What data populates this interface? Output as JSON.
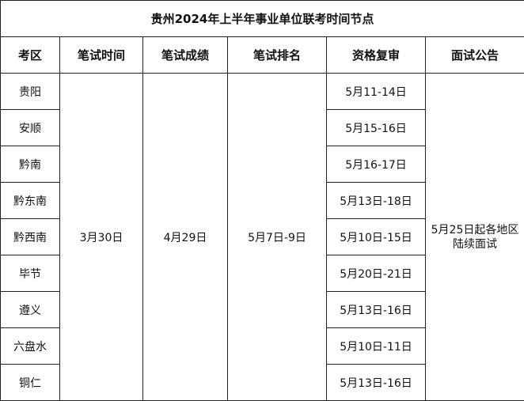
{
  "title": "贵州2024年上半年事业单位联考时间节点",
  "headers": [
    "考区",
    "笔试时间",
    "笔试成绩",
    "笔试排名",
    "资格复审",
    "面试公告"
  ],
  "shared": {
    "exam_date": "3月30日",
    "score_date": "4月29日",
    "ranking_date": "5月7日-9日",
    "interview_notice_line1": "5月25日起各地区",
    "interview_notice_line2": "陆续面试"
  },
  "rows": [
    {
      "region": "贵阳",
      "review": "5月11-14日"
    },
    {
      "region": "安顺",
      "review": "5月15-16日"
    },
    {
      "region": "黔南",
      "review": "5月16-17日"
    },
    {
      "region": "黔东南",
      "review": "5月13日-18日"
    },
    {
      "region": "黔西南",
      "review": "5月10日-15日"
    },
    {
      "region": "毕节",
      "review": "5月20日-21日"
    },
    {
      "region": "遵义",
      "review": "5月13日-16日"
    },
    {
      "region": "六盘水",
      "review": "5月10日-11日"
    },
    {
      "region": "铜仁",
      "review": "5月13日-16日"
    }
  ]
}
